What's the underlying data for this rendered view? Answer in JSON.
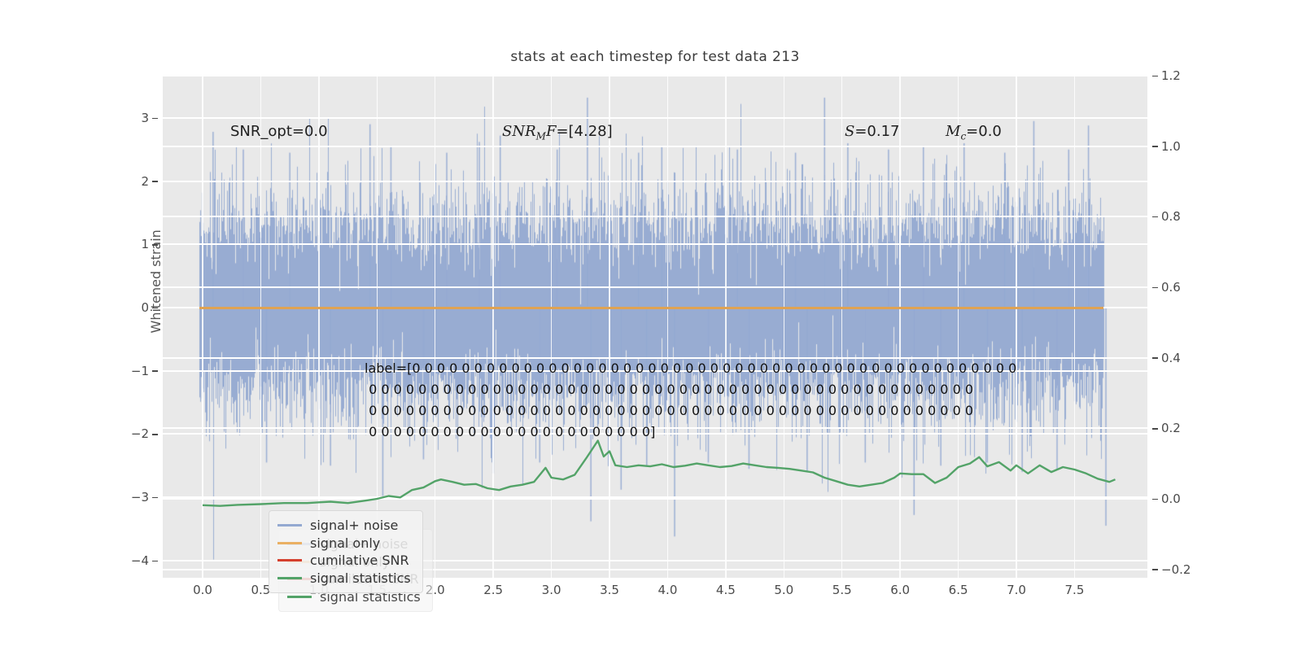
{
  "title": "stats at each timestep for test data 213",
  "ylabel_left": "Whitened strain",
  "annotations": {
    "snr_opt": "SNR_opt=0.0",
    "snr_mf_prefix": "SNR",
    "snr_mf_sub": "M",
    "snr_mf_f": "F",
    "snr_mf_value": "=[4.28]",
    "s_prefix": "S",
    "s_value": "=0.17",
    "mc_prefix": "M",
    "mc_sub": "c",
    "mc_value": "=0.0"
  },
  "label_lines": [
    "label=[0 0 0 0 0 0 0 0 0 0 0 0 0 0 0 0 0 0 0 0 0 0 0 0 0 0 0 0 0 0 0 0 0 0 0 0 0 0 0 0 0 0 0 0 0 0 0 0 0",
    " 0 0 0 0 0 0 0 0 0 0 0 0 0 0 0 0 0 0 0 0 0 0 0 0 0 0 0 0 0 0 0 0 0 0 0 0 0 0 0 0 0 0 0 0 0 0 0 0 0",
    " 0 0 0 0 0 0 0 0 0 0 0 0 0 0 0 0 0 0 0 0 0 0 0 0 0 0 0 0 0 0 0 0 0 0 0 0 0 0 0 0 0 0 0 0 0 0 0 0 0",
    " 0 0 0 0 0 0 0 0 0 0 0 0 0 0 0 0 0 0 0 0 0 0 0]"
  ],
  "legend": {
    "entries": [
      {
        "label": "signal+ noise",
        "color": "#94a9d1"
      },
      {
        "label": "signal only",
        "color": "#eab063"
      },
      {
        "label": "cumilative SNR",
        "color": "#d5402e"
      },
      {
        "label": "signal statistics",
        "color": "#53a368"
      }
    ]
  },
  "axes": {
    "y_left": {
      "label": "Whitened strain",
      "ticks": [
        3,
        2,
        1,
        0,
        -1,
        -2,
        -3,
        -4
      ],
      "range": [
        -4.3,
        3.67
      ]
    },
    "y_right": {
      "ticks": [
        1.2,
        1.0,
        0.8,
        0.6,
        0.4,
        0.2,
        0.0,
        -0.2
      ],
      "range": [
        -0.223,
        1.2
      ]
    },
    "x": {
      "ticks": [
        0.0,
        0.5,
        1.0,
        1.5,
        2.0,
        2.5,
        3.0,
        3.5,
        4.0,
        4.5,
        5.0,
        5.5,
        6.0,
        6.5,
        7.0,
        7.5
      ],
      "range": [
        -0.39,
        8.08
      ]
    },
    "grid": true,
    "plot_bg": "#e9e9e9",
    "grid_color": "#ffffff"
  },
  "chart_data": {
    "type": "line",
    "title": "stats at each timestep for test data 213",
    "xlabel": "",
    "ylabel_left": "Whitened strain",
    "legend_position": "lower left",
    "series": [
      {
        "name": "signal+ noise",
        "axis": "left",
        "color": "#94a9d1",
        "kind": "dense gaussian noise trace",
        "x_span": [
          -0.03,
          7.75
        ],
        "noise_std": 0.78,
        "samples_per_pixel": 16,
        "seed": 1337,
        "notable_peaks_pos": [
          [
            0.09,
            2.78
          ],
          [
            0.35,
            2.5
          ],
          [
            0.75,
            2.45
          ],
          [
            1.44,
            2.9
          ],
          [
            1.62,
            2.55
          ],
          [
            2.1,
            2.45
          ],
          [
            2.38,
            2.62
          ],
          [
            2.56,
            2.72
          ],
          [
            3.05,
            2.5
          ],
          [
            3.31,
            3.32
          ],
          [
            3.75,
            2.45
          ],
          [
            3.95,
            2.55
          ],
          [
            4.6,
            2.5
          ],
          [
            5.1,
            2.45
          ],
          [
            5.35,
            3.32
          ],
          [
            5.55,
            2.6
          ],
          [
            5.9,
            2.5
          ],
          [
            6.2,
            2.55
          ],
          [
            6.55,
            2.6
          ],
          [
            6.9,
            2.45
          ],
          [
            7.15,
            2.95
          ],
          [
            7.45,
            2.5
          ],
          [
            7.62,
            2.88
          ]
        ],
        "notable_peaks_neg": [
          [
            0.55,
            -2.45
          ],
          [
            1.1,
            -2.5
          ],
          [
            1.55,
            -2.98
          ],
          [
            1.9,
            -2.4
          ],
          [
            2.5,
            -2.62
          ],
          [
            2.9,
            -2.45
          ],
          [
            3.34,
            -3.38
          ],
          [
            3.6,
            -2.88
          ],
          [
            3.82,
            -2.5
          ],
          [
            4.06,
            -3.62
          ],
          [
            4.35,
            -2.45
          ],
          [
            4.7,
            -2.55
          ],
          [
            5.2,
            -2.6
          ],
          [
            5.7,
            -2.45
          ],
          [
            6.12,
            -3.28
          ],
          [
            6.35,
            -2.5
          ],
          [
            6.75,
            -2.45
          ],
          [
            7.05,
            -2.6
          ],
          [
            7.35,
            -2.55
          ],
          [
            7.77,
            -3.45
          ]
        ]
      },
      {
        "name": "signal only",
        "axis": "left",
        "color": "#dfa353",
        "kind": "constant",
        "value": 0.0,
        "x_span": [
          -0.03,
          7.75
        ]
      },
      {
        "name": "cumilative SNR",
        "axis": "right",
        "color": "#d5402e",
        "kind": "constant",
        "value": 0.0,
        "note": "not visible in plot (hidden beneath signal-only line); appears only in legend",
        "x_span": [
          -0.03,
          7.75
        ]
      },
      {
        "name": "signal statistics",
        "axis": "right",
        "color": "#53a368",
        "kind": "polyline",
        "points": [
          [
            0.0,
            -0.018
          ],
          [
            0.15,
            -0.02
          ],
          [
            0.3,
            -0.017
          ],
          [
            0.5,
            -0.015
          ],
          [
            0.7,
            -0.012
          ],
          [
            0.9,
            -0.012
          ],
          [
            1.0,
            -0.01
          ],
          [
            1.1,
            -0.008
          ],
          [
            1.25,
            -0.012
          ],
          [
            1.4,
            -0.005
          ],
          [
            1.5,
            0.0
          ],
          [
            1.6,
            0.008
          ],
          [
            1.7,
            0.004
          ],
          [
            1.8,
            0.025
          ],
          [
            1.9,
            0.032
          ],
          [
            2.0,
            0.05
          ],
          [
            2.05,
            0.055
          ],
          [
            2.15,
            0.048
          ],
          [
            2.25,
            0.04
          ],
          [
            2.35,
            0.042
          ],
          [
            2.45,
            0.03
          ],
          [
            2.55,
            0.025
          ],
          [
            2.65,
            0.035
          ],
          [
            2.75,
            0.04
          ],
          [
            2.85,
            0.048
          ],
          [
            2.95,
            0.088
          ],
          [
            3.0,
            0.06
          ],
          [
            3.1,
            0.055
          ],
          [
            3.2,
            0.068
          ],
          [
            3.3,
            0.115
          ],
          [
            3.4,
            0.165
          ],
          [
            3.45,
            0.12
          ],
          [
            3.5,
            0.135
          ],
          [
            3.55,
            0.095
          ],
          [
            3.65,
            0.09
          ],
          [
            3.75,
            0.095
          ],
          [
            3.85,
            0.092
          ],
          [
            3.95,
            0.098
          ],
          [
            4.05,
            0.09
          ],
          [
            4.15,
            0.094
          ],
          [
            4.25,
            0.1
          ],
          [
            4.35,
            0.095
          ],
          [
            4.45,
            0.09
          ],
          [
            4.55,
            0.093
          ],
          [
            4.65,
            0.1
          ],
          [
            4.75,
            0.095
          ],
          [
            4.85,
            0.09
          ],
          [
            4.95,
            0.088
          ],
          [
            5.05,
            0.085
          ],
          [
            5.15,
            0.08
          ],
          [
            5.25,
            0.075
          ],
          [
            5.35,
            0.06
          ],
          [
            5.45,
            0.05
          ],
          [
            5.55,
            0.04
          ],
          [
            5.65,
            0.035
          ],
          [
            5.75,
            0.04
          ],
          [
            5.85,
            0.045
          ],
          [
            5.95,
            0.06
          ],
          [
            6.0,
            0.072
          ],
          [
            6.1,
            0.07
          ],
          [
            6.2,
            0.07
          ],
          [
            6.3,
            0.045
          ],
          [
            6.4,
            0.06
          ],
          [
            6.5,
            0.09
          ],
          [
            6.6,
            0.1
          ],
          [
            6.68,
            0.118
          ],
          [
            6.75,
            0.092
          ],
          [
            6.85,
            0.104
          ],
          [
            6.95,
            0.08
          ],
          [
            7.0,
            0.095
          ],
          [
            7.1,
            0.072
          ],
          [
            7.2,
            0.095
          ],
          [
            7.3,
            0.076
          ],
          [
            7.4,
            0.09
          ],
          [
            7.5,
            0.083
          ],
          [
            7.6,
            0.072
          ],
          [
            7.7,
            0.057
          ],
          [
            7.8,
            0.048
          ],
          [
            7.85,
            0.055
          ]
        ]
      }
    ],
    "annotations_on_plot": [
      "SNR_opt=0.0",
      "SNR_MF=[4.28]",
      "S=0.17",
      "M_c=0.0",
      "label=[170 zeros]"
    ]
  }
}
